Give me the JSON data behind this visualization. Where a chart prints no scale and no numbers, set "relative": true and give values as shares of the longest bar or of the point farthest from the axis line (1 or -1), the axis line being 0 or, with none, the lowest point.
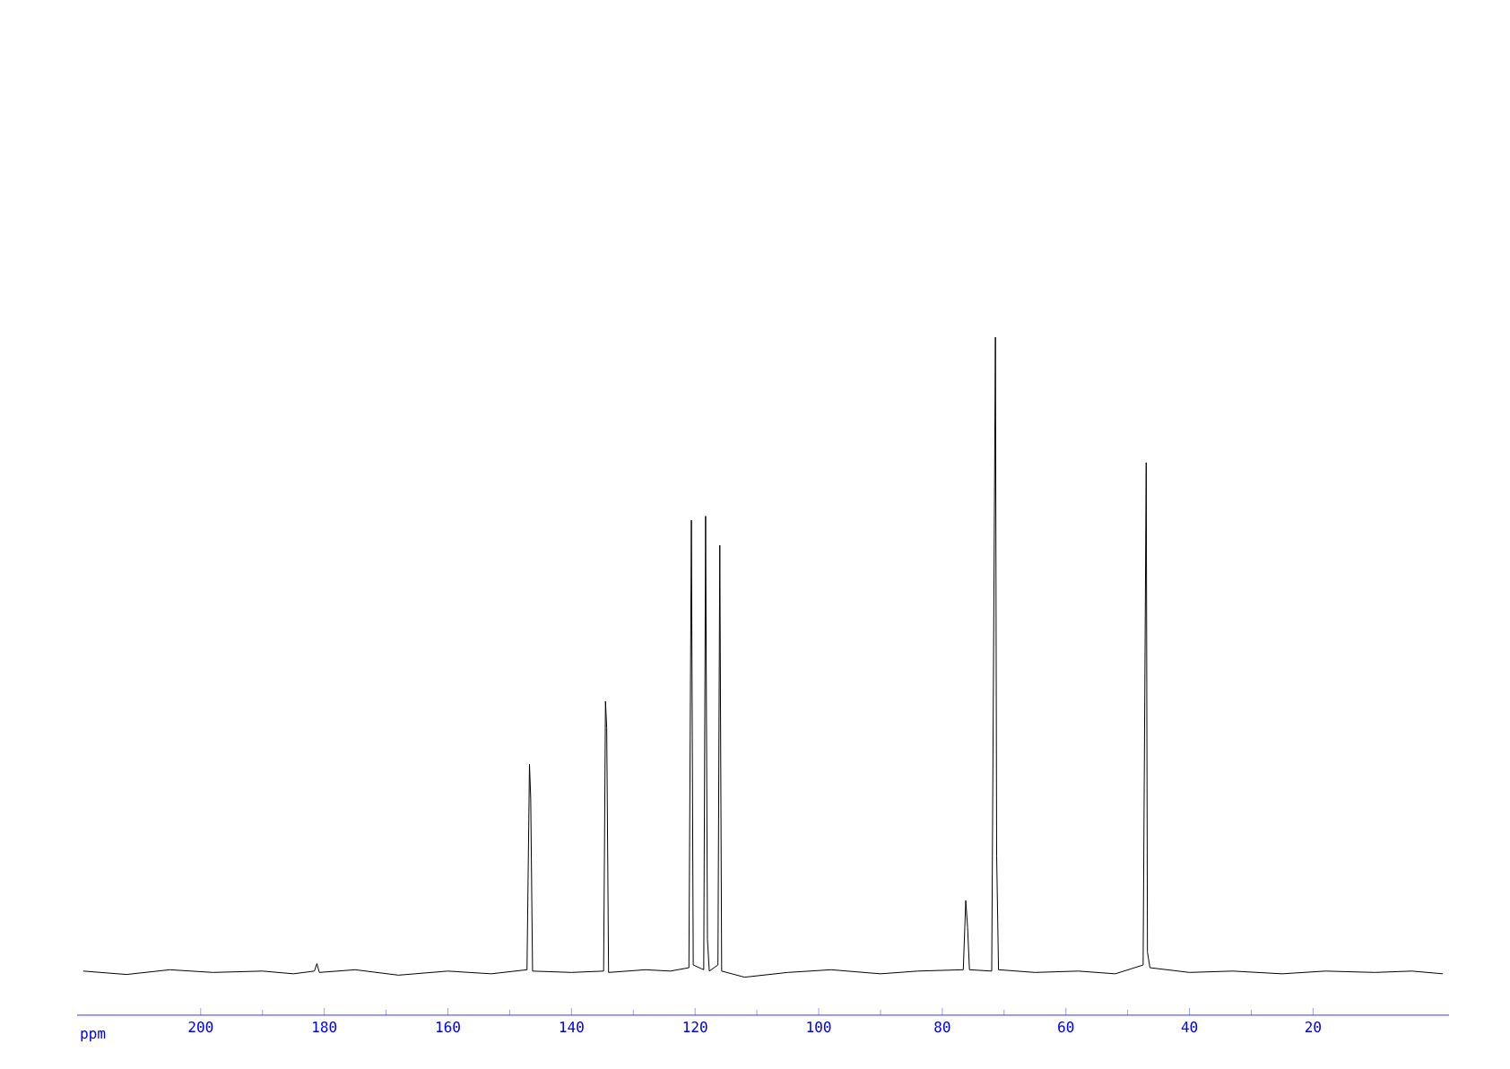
{
  "chart_data": {
    "type": "line",
    "relative": true,
    "xlabel": "ppm",
    "xlim": [
      220,
      -2
    ],
    "xticks": [
      200,
      180,
      160,
      140,
      120,
      100,
      80,
      60,
      40,
      20
    ],
    "series": [
      {
        "color": "#000000",
        "x": [
          219,
          212,
          205,
          198,
          190,
          185,
          181.6,
          181.2,
          180.8,
          175,
          168,
          160,
          153,
          147.2,
          146.8,
          146.6,
          146.3,
          140,
          134.8,
          134.5,
          134.3,
          134.0,
          128,
          124,
          121.0,
          120.6,
          120.3,
          118.6,
          118.3,
          118.0,
          117.7,
          116.3,
          116.0,
          115.7,
          112,
          105,
          98,
          90,
          84,
          76.6,
          76.2,
          75.9,
          75.6,
          72.0,
          71.4,
          71.2,
          70.9,
          65,
          58,
          52,
          47.5,
          47.0,
          46.8,
          46.4,
          40,
          33,
          25,
          18,
          10,
          4,
          -1
        ],
        "values": [
          0.065,
          0.06,
          0.067,
          0.063,
          0.065,
          0.061,
          0.065,
          0.076,
          0.063,
          0.067,
          0.059,
          0.065,
          0.061,
          0.067,
          0.37,
          0.32,
          0.065,
          0.063,
          0.065,
          0.463,
          0.424,
          0.063,
          0.067,
          0.065,
          0.07,
          0.73,
          0.074,
          0.067,
          0.736,
          0.112,
          0.065,
          0.074,
          0.693,
          0.065,
          0.056,
          0.063,
          0.067,
          0.061,
          0.065,
          0.067,
          0.169,
          0.129,
          0.067,
          0.065,
          1.0,
          0.235,
          0.067,
          0.063,
          0.065,
          0.061,
          0.074,
          0.815,
          0.093,
          0.07,
          0.063,
          0.065,
          0.061,
          0.065,
          0.063,
          0.065,
          0.061
        ]
      }
    ]
  }
}
